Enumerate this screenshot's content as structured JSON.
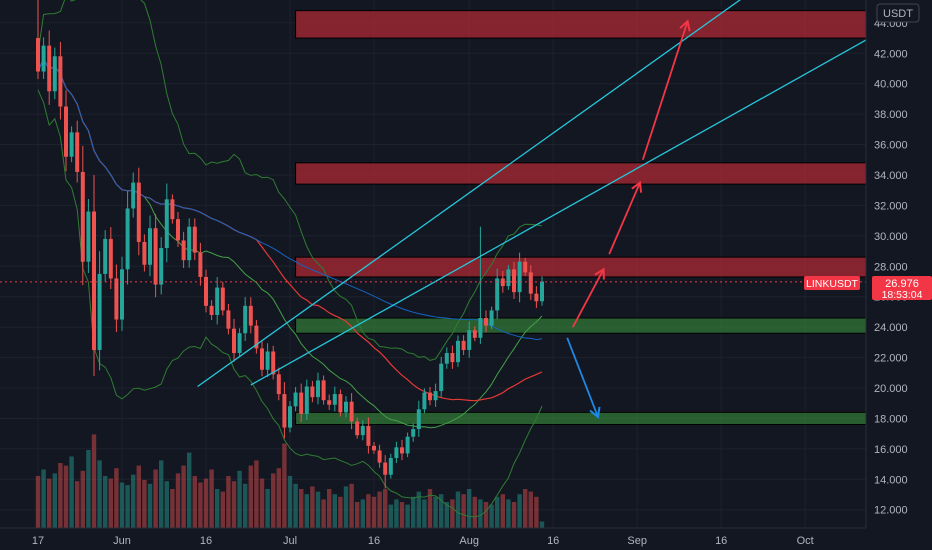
{
  "chart_data": {
    "type": "candlestick",
    "symbol": "LINKUSDT",
    "currency": "USDT",
    "last_price": "26.976",
    "countdown": "18:53:04",
    "y_axis": {
      "range": [
        10.8,
        45.5
      ],
      "tick_labels": [
        "12.000",
        "14.000",
        "16.000",
        "18.000",
        "20.000",
        "22.000",
        "24.000",
        "26.000",
        "28.000",
        "30.000",
        "32.000",
        "34.000",
        "36.000",
        "38.000",
        "40.000",
        "42.000",
        "44.000"
      ],
      "ticks": [
        12,
        14,
        16,
        18,
        20,
        22,
        24,
        26,
        28,
        30,
        32,
        34,
        36,
        38,
        40,
        42,
        44
      ]
    },
    "x_axis": {
      "tick_labels": [
        "17",
        "Jun",
        "16",
        "Jul",
        "16",
        "Aug",
        "16",
        "Sep",
        "16",
        "Oct"
      ],
      "ticks": [
        0,
        15,
        30,
        45,
        60,
        77,
        92,
        107,
        122,
        137
      ]
    },
    "zones": [
      {
        "kind": "resistance",
        "low": 43.0,
        "high": 44.8,
        "x_from": 46,
        "x_to": 148
      },
      {
        "kind": "resistance",
        "low": 33.4,
        "high": 34.8,
        "x_from": 46,
        "x_to": 148
      },
      {
        "kind": "resistance",
        "low": 27.3,
        "high": 28.6,
        "x_from": 46,
        "x_to": 148
      },
      {
        "kind": "support",
        "low": 23.6,
        "high": 24.6,
        "x_from": 46,
        "x_to": 148
      },
      {
        "kind": "support",
        "low": 17.6,
        "high": 18.4,
        "x_from": 46,
        "x_to": 148
      }
    ],
    "trendlines": [
      {
        "from": [
          28.5,
          20.1
        ],
        "to": [
          128,
          46.2
        ],
        "color": "#26c6da"
      },
      {
        "from": [
          38,
          20.2
        ],
        "to": [
          148,
          42.9
        ],
        "color": "#26c6da"
      }
    ],
    "arrows": [
      {
        "from": [
          95.5,
          24.0
        ],
        "to": [
          101,
          27.8
        ],
        "color": "#f23645"
      },
      {
        "from": [
          102,
          28.8
        ],
        "to": [
          107.5,
          33.5
        ],
        "color": "#f23645"
      },
      {
        "from": [
          108,
          35.0
        ],
        "to": [
          116,
          44.1
        ],
        "color": "#f23645"
      },
      {
        "from": [
          94.5,
          23.3
        ],
        "to": [
          100,
          18.1
        ],
        "color": "#1e88e5"
      }
    ],
    "candles": {
      "start_close": 43.0,
      "closes": [
        40.8,
        42.5,
        39.5,
        41.8,
        38.5,
        35.2,
        36.8,
        34.2,
        28.3,
        31.6,
        22.5,
        27.5,
        29.8,
        27.2,
        24.5,
        27.8,
        31.8,
        33.5,
        29.6,
        28.1,
        30.5,
        26.8,
        29.2,
        32.4,
        31.1,
        29.7,
        28.4,
        30.6,
        28.9,
        27.3,
        25.4,
        24.8,
        26.6,
        25.1,
        23.9,
        22.3,
        23.6,
        25.4,
        24.1,
        22.6,
        21.2,
        22.4,
        20.9,
        19.6,
        17.4,
        18.8,
        19.7,
        18.3,
        20.1,
        19.4,
        20.5,
        19.2,
        18.9,
        19.6,
        18.4,
        19.1,
        17.8,
        16.9,
        17.5,
        16.2,
        15.9,
        15.1,
        14.3,
        15.4,
        16.1,
        15.7,
        16.8,
        17.3,
        18.6,
        19.7,
        19.2,
        19.8,
        21.6,
        22.3,
        21.7,
        23.1,
        22.5,
        23.8,
        23.3,
        24.6,
        24.1,
        25.1,
        27.2,
        26.7,
        27.8,
        26.3,
        28.3,
        27.6,
        26.2,
        25.7,
        27.0
      ],
      "volume_range": [
        0,
        100
      ],
      "volumes": [
        40,
        45,
        38,
        42,
        50,
        48,
        55,
        36,
        44,
        60,
        72,
        52,
        40,
        38,
        46,
        35,
        33,
        41,
        48,
        37,
        34,
        45,
        52,
        36,
        30,
        42,
        48,
        58,
        40,
        35,
        38,
        45,
        30,
        28,
        40,
        36,
        44,
        34,
        48,
        52,
        38,
        30,
        42,
        46,
        65,
        40,
        34,
        30,
        26,
        32,
        28,
        22,
        30,
        26,
        24,
        32,
        34,
        20,
        22,
        26,
        24,
        28,
        30,
        18,
        22,
        20,
        18,
        24,
        28,
        22,
        30,
        24,
        26,
        20,
        22,
        28,
        26,
        30,
        24,
        22,
        20,
        18,
        24,
        26,
        22,
        20,
        26,
        30,
        28,
        24,
        5
      ]
    }
  }
}
